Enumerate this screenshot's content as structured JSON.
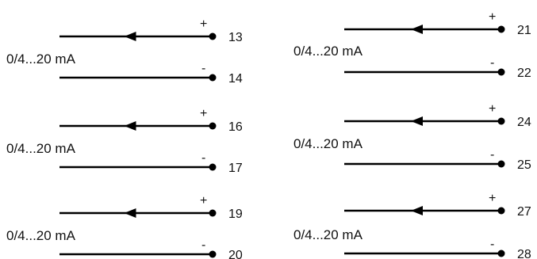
{
  "diagram": {
    "colors": {
      "line": "#000000",
      "text": "#111111"
    },
    "groups": [
      {
        "label": "0/4...20 mA",
        "plus_sign": "+",
        "minus_sign": "-",
        "plus_terminal": "13",
        "minus_terminal": "14"
      },
      {
        "label": "0/4...20 mA",
        "plus_sign": "+",
        "minus_sign": "-",
        "plus_terminal": "16",
        "minus_terminal": "17"
      },
      {
        "label": "0/4...20 mA",
        "plus_sign": "+",
        "minus_sign": "-",
        "plus_terminal": "19",
        "minus_terminal": "20"
      },
      {
        "label": "0/4...20 mA",
        "plus_sign": "+",
        "minus_sign": "-",
        "plus_terminal": "21",
        "minus_terminal": "22"
      },
      {
        "label": "0/4...20 mA",
        "plus_sign": "+",
        "minus_sign": "-",
        "plus_terminal": "24",
        "minus_terminal": "25"
      },
      {
        "label": "0/4...20 mA",
        "plus_sign": "+",
        "minus_sign": "-",
        "plus_terminal": "27",
        "minus_terminal": "28"
      }
    ]
  }
}
